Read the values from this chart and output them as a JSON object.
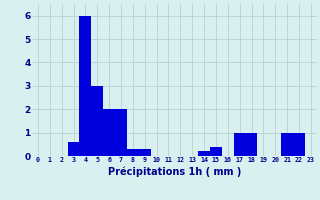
{
  "values": [
    0,
    0,
    0,
    0.6,
    6,
    3,
    2,
    2,
    0.3,
    0.3,
    0,
    0,
    0,
    0,
    0.2,
    0.4,
    0,
    1,
    1,
    0,
    0,
    1,
    1,
    0
  ],
  "categories": [
    0,
    1,
    2,
    3,
    4,
    5,
    6,
    7,
    8,
    9,
    10,
    11,
    12,
    13,
    14,
    15,
    16,
    17,
    18,
    19,
    20,
    21,
    22,
    23
  ],
  "bar_color": "#0000dd",
  "background_color": "#daf0f0",
  "grid_color": "#b8d0d0",
  "xlabel": "Précipitations 1h ( mm )",
  "xlabel_color": "#00008b",
  "tick_color": "#00008b",
  "ylim": [
    0,
    6.5
  ],
  "yticks": [
    0,
    1,
    2,
    3,
    4,
    5,
    6
  ],
  "bar_width": 1.0
}
